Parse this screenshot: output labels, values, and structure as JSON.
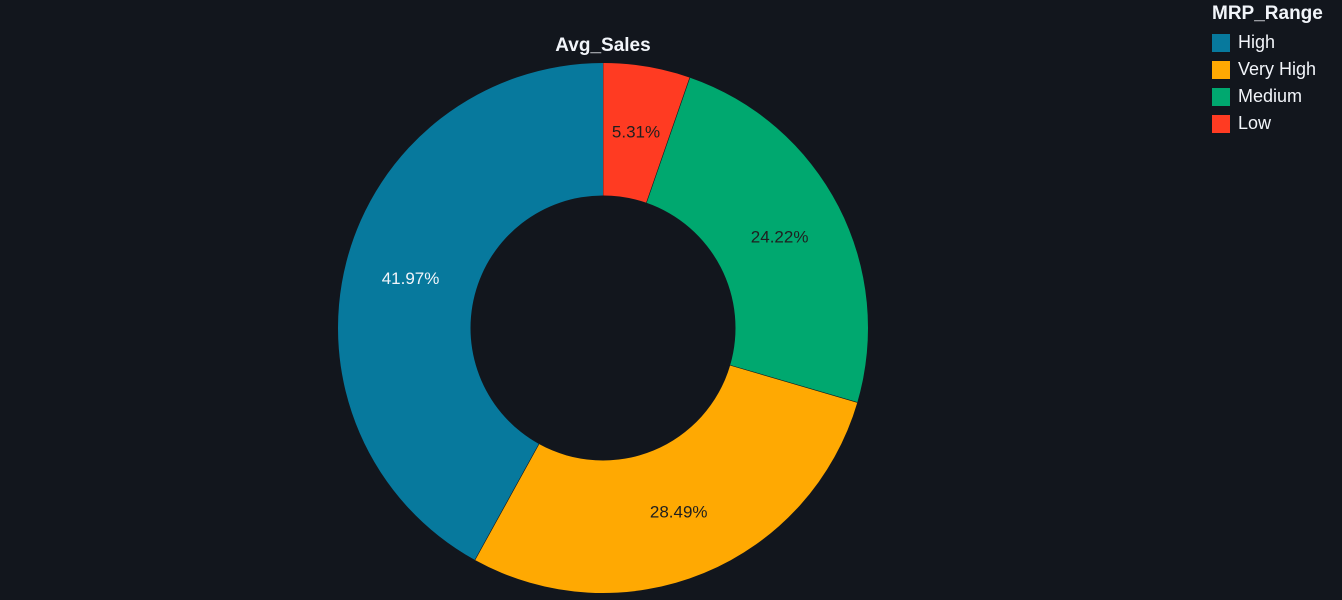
{
  "chart_data": {
    "type": "pie",
    "title": "Avg_Sales",
    "hole": 0.5,
    "slices": [
      {
        "label": "Low",
        "value": 5.31,
        "display": "5.31%",
        "color": "#ff3b22",
        "text_color": "#1f1f1f"
      },
      {
        "label": "Medium",
        "value": 24.22,
        "display": "24.22%",
        "color": "#00a86f",
        "text_color": "#1f1f1f"
      },
      {
        "label": "Very High",
        "value": 28.49,
        "display": "28.49%",
        "color": "#ffa902",
        "text_color": "#1f1f1f"
      },
      {
        "label": "High",
        "value": 41.97,
        "display": "41.97%",
        "color": "#07799d",
        "text_color": "#f2f5fa"
      }
    ],
    "legend": {
      "title": "MRP_Range",
      "placement": "top-right",
      "items": [
        {
          "label": "High",
          "color": "#07799d"
        },
        {
          "label": "Very High",
          "color": "#ffa902"
        },
        {
          "label": "Medium",
          "color": "#00a86f"
        },
        {
          "label": "Low",
          "color": "#ff3b22"
        }
      ]
    }
  },
  "colors": {
    "background": "#12161d",
    "text": "#f2f5fa"
  }
}
